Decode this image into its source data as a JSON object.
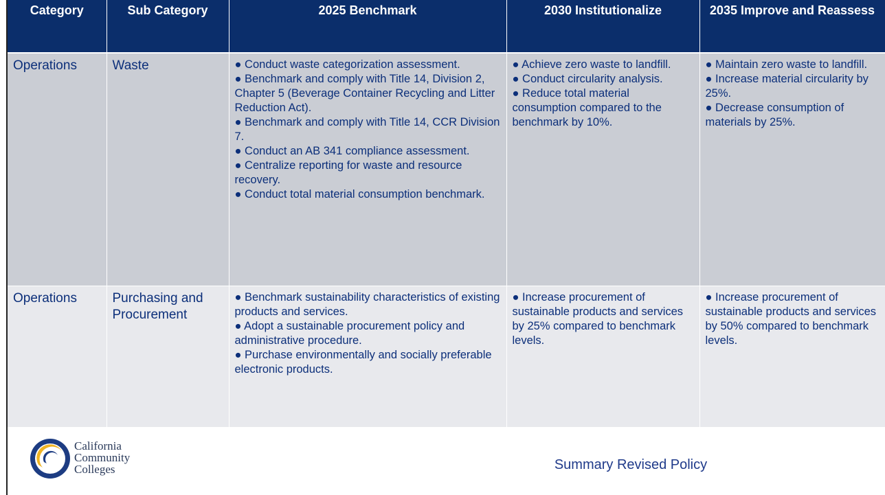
{
  "table": {
    "headers": [
      "Category",
      "Sub Category",
      "2025 Benchmark",
      "2030 Institutionalize",
      "2035 Improve and Reassess"
    ],
    "rows": [
      {
        "category": "Operations",
        "sub_category": "Waste",
        "cells": [
          [
            "● Conduct waste categorization assessment.",
            "● Benchmark and comply with Title 14, Division 2, Chapter 5 (Beverage Container Recycling and Litter Reduction Act).",
            "● Benchmark and comply with Title 14, CCR Division 7.",
            "● Conduct an AB 341 compliance assessment.",
            "● Centralize reporting for waste and resource recovery.",
            "● Conduct total material consumption benchmark."
          ],
          [
            "● Achieve zero waste to landfill.",
            "● Conduct circularity analysis.",
            "● Reduce total material consumption compared to the benchmark by 10%."
          ],
          [
            "● Maintain zero waste to landfill.",
            "● Increase material circularity by 25%.",
            "● Decrease consumption of materials by 25%."
          ]
        ]
      },
      {
        "category": "Operations",
        "sub_category": "Purchasing and Procurement",
        "cells": [
          [
            "● Benchmark sustainability characteristics of existing products and services.",
            "● Adopt a sustainable procurement policy and administrative procedure.",
            "● Purchase environmentally and socially preferable electronic products."
          ],
          [
            "● Increase procurement of sustainable products and services by 25% compared to benchmark levels."
          ],
          [
            "● Increase procurement of sustainable products and services by 50% compared to benchmark levels."
          ]
        ]
      }
    ]
  },
  "logo": {
    "lines": [
      "California",
      "Community",
      "Colleges"
    ]
  },
  "footer": "Summary Revised Policy"
}
